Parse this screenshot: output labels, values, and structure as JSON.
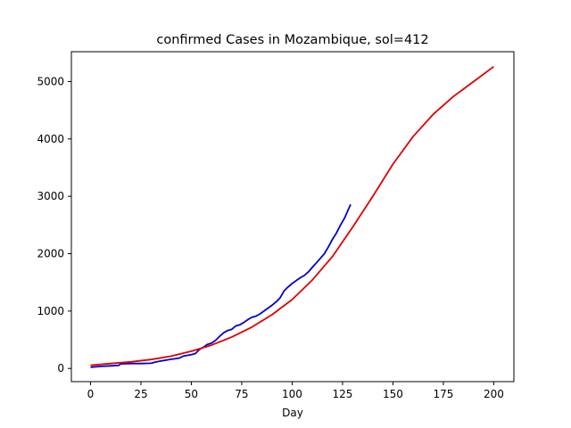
{
  "chart_data": {
    "type": "line",
    "title": "confirmed Cases in Mozambique, sol=412",
    "xlabel": "Day",
    "ylabel": "",
    "xlim": [
      -9.5,
      210
    ],
    "ylim": [
      -230,
      5520
    ],
    "xticks": [
      0,
      25,
      50,
      75,
      100,
      125,
      150,
      175,
      200
    ],
    "yticks": [
      0,
      1000,
      2000,
      3000,
      4000,
      5000
    ],
    "grid": false,
    "legend": "none",
    "series": [
      {
        "color": "#0000cc",
        "x": [
          0,
          5,
          10,
          14,
          15,
          20,
          25,
          30,
          32,
          35,
          40,
          44,
          46,
          50,
          52,
          54,
          56,
          58,
          60,
          62,
          64,
          66,
          68,
          70,
          72,
          74,
          76,
          78,
          80,
          82,
          84,
          86,
          88,
          90,
          92,
          94,
          96,
          98,
          100,
          102,
          104,
          106,
          108,
          110,
          112,
          114,
          116,
          118,
          120,
          122,
          124,
          126,
          128,
          129
        ],
        "values": [
          20,
          35,
          45,
          55,
          80,
          85,
          85,
          90,
          110,
          130,
          160,
          180,
          215,
          240,
          260,
          330,
          370,
          420,
          440,
          490,
          560,
          620,
          660,
          680,
          740,
          760,
          800,
          850,
          890,
          910,
          950,
          1000,
          1050,
          1100,
          1160,
          1230,
          1350,
          1420,
          1480,
          1530,
          1580,
          1620,
          1680,
          1760,
          1840,
          1920,
          2000,
          2120,
          2250,
          2360,
          2500,
          2620,
          2780,
          2860
        ]
      },
      {
        "color": "#dd0000",
        "x": [
          0,
          10,
          20,
          30,
          40,
          50,
          60,
          70,
          80,
          90,
          100,
          110,
          120,
          130,
          140,
          150,
          160,
          170,
          180,
          190,
          200
        ],
        "values": [
          55,
          85,
          115,
          155,
          215,
          300,
          405,
          545,
          720,
          935,
          1200,
          1540,
          1950,
          2460,
          3000,
          3560,
          4040,
          4430,
          4740,
          5000,
          5260
        ]
      }
    ]
  }
}
